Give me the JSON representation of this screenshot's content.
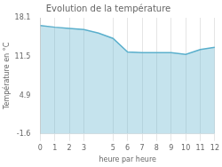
{
  "chart_data": {
    "type": "area",
    "title": "Evolution de la température",
    "x_label": "heure par heure",
    "y_label": "Température en °C",
    "x": [
      0,
      1,
      2,
      3,
      4,
      5,
      6,
      7,
      8,
      9,
      10,
      11,
      12
    ],
    "values": [
      16.8,
      16.5,
      16.3,
      16.1,
      15.5,
      14.6,
      12.3,
      12.2,
      12.2,
      12.2,
      11.9,
      12.7,
      13.1
    ],
    "color": "#5aafcc",
    "xlim": [
      0,
      12
    ],
    "xticks": [
      0,
      1,
      2,
      3,
      5,
      6,
      7,
      8,
      9,
      10,
      11,
      12
    ],
    "ylim": [
      -1.6,
      18.1
    ],
    "yticks": [
      -1.6,
      4.9,
      11.5,
      18.1
    ],
    "grid": true
  }
}
